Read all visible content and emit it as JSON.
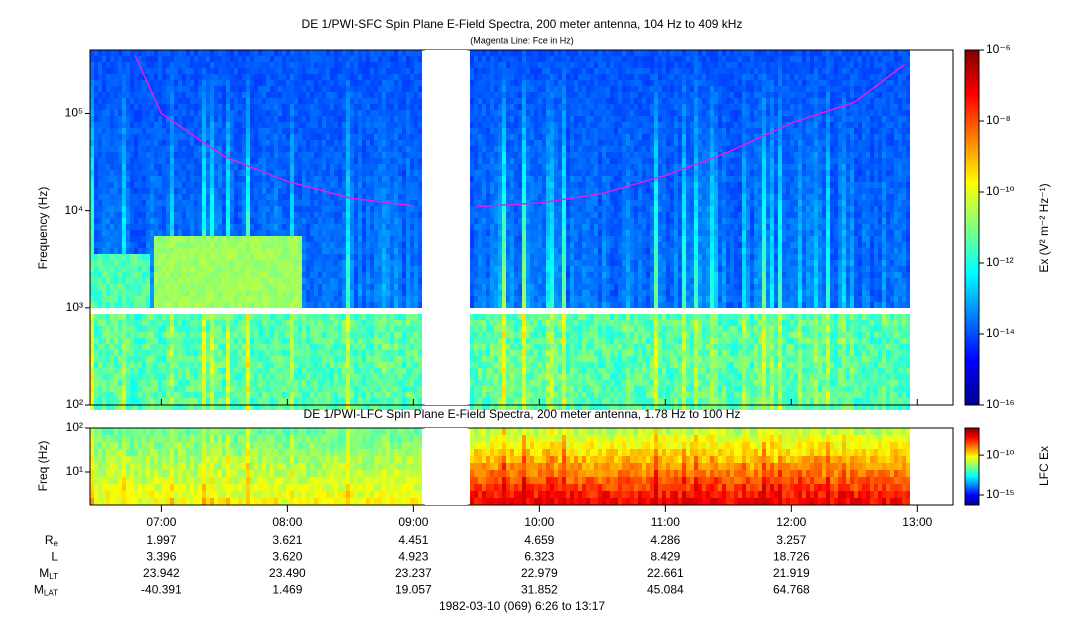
{
  "chart_data": [
    {
      "type": "spectrogram",
      "title": "DE 1/PWI-SFC  Spin Plane E-Field Spectra, 200 meter antenna, 104 Hz to 409 kHz",
      "subtitle": "(Magenta Line: Fce in Hz)",
      "y_label": "Frequency (Hz)",
      "log_y": true,
      "ylim": [
        100,
        450000
      ],
      "yticks": [
        {
          "value": 100,
          "label": "10²"
        },
        {
          "value": 1000,
          "label": "10³"
        },
        {
          "value": 10000,
          "label": "10⁴"
        },
        {
          "value": 100000,
          "label": "10⁵"
        }
      ],
      "xlim": [
        6.4333,
        13.2833
      ],
      "line": {
        "color": "#e020e0",
        "x": [
          6.79,
          7.0,
          7.5,
          8.0,
          8.5,
          9.0,
          9.2,
          9.5,
          10.0,
          10.5,
          11.0,
          11.5,
          12.0,
          12.5,
          12.9
        ],
        "values": [
          400000,
          100000,
          36000,
          20000,
          13500,
          11200,
          null,
          11000,
          12000,
          15000,
          23000,
          40000,
          80000,
          130000,
          320000
        ]
      },
      "colorbar": {
        "label": "Ex (V² m⁻² Hz⁻¹)",
        "lim": [
          1e-16,
          1e-06
        ],
        "ticks": [
          {
            "value": 1e-16,
            "label": "10⁻¹⁶"
          },
          {
            "value": 1e-14,
            "label": "10⁻¹⁴"
          },
          {
            "value": 1e-12,
            "label": "10⁻¹²"
          },
          {
            "value": 1e-10,
            "label": "10⁻¹⁰"
          },
          {
            "value": 1e-08,
            "label": "10⁻⁸"
          },
          {
            "value": 1e-06,
            "label": "10⁻⁶"
          }
        ]
      }
    },
    {
      "type": "spectrogram",
      "title": "DE 1/PWI-LFC  Spin Plane E-Field Spectra, 200 meter antenna, 1.78 Hz to 100 Hz",
      "y_label": "Freq (Hz)",
      "log_y": true,
      "ylim": [
        1.78,
        100
      ],
      "yticks": [
        {
          "value": 10,
          "label": "10¹"
        },
        {
          "value": 100,
          "label": "10²"
        }
      ],
      "xlim": [
        6.4333,
        13.2833
      ],
      "xticks": [
        {
          "value": 7,
          "label": "07:00"
        },
        {
          "value": 8,
          "label": "08:00"
        },
        {
          "value": 9,
          "label": "09:00"
        },
        {
          "value": 10,
          "label": "10:00"
        },
        {
          "value": 11,
          "label": "11:00"
        },
        {
          "value": 12,
          "label": "12:00"
        },
        {
          "value": 13,
          "label": "13:00"
        }
      ],
      "colorbar": {
        "label": "LFC Ex",
        "lim": [
          5.6e-17,
          2.5e-07
        ],
        "ticks": [
          {
            "value": 1e-15,
            "label": "10⁻¹⁵"
          },
          {
            "value": 1e-10,
            "label": "10⁻¹⁰"
          }
        ]
      }
    }
  ],
  "ephemeris": [
    {
      "label": "R",
      "sub": "e",
      "values": [
        "1.997",
        "3.621",
        "4.451",
        "4.659",
        "4.286",
        "3.257"
      ]
    },
    {
      "label": "L",
      "values": [
        "3.396",
        "3.620",
        "4.923",
        "6.323",
        "8.429",
        "18.726"
      ]
    },
    {
      "label": "M",
      "sub": "LT",
      "values": [
        "23.942",
        "23.490",
        "23.237",
        "22.979",
        "22.661",
        "21.919"
      ]
    },
    {
      "label": "M",
      "sub": "LAT",
      "values": [
        "-40.391",
        "1.469",
        "19.057",
        "31.852",
        "45.084",
        "64.768"
      ]
    }
  ],
  "footer": "1982-03-10 (069) 6:26 to 13:17"
}
